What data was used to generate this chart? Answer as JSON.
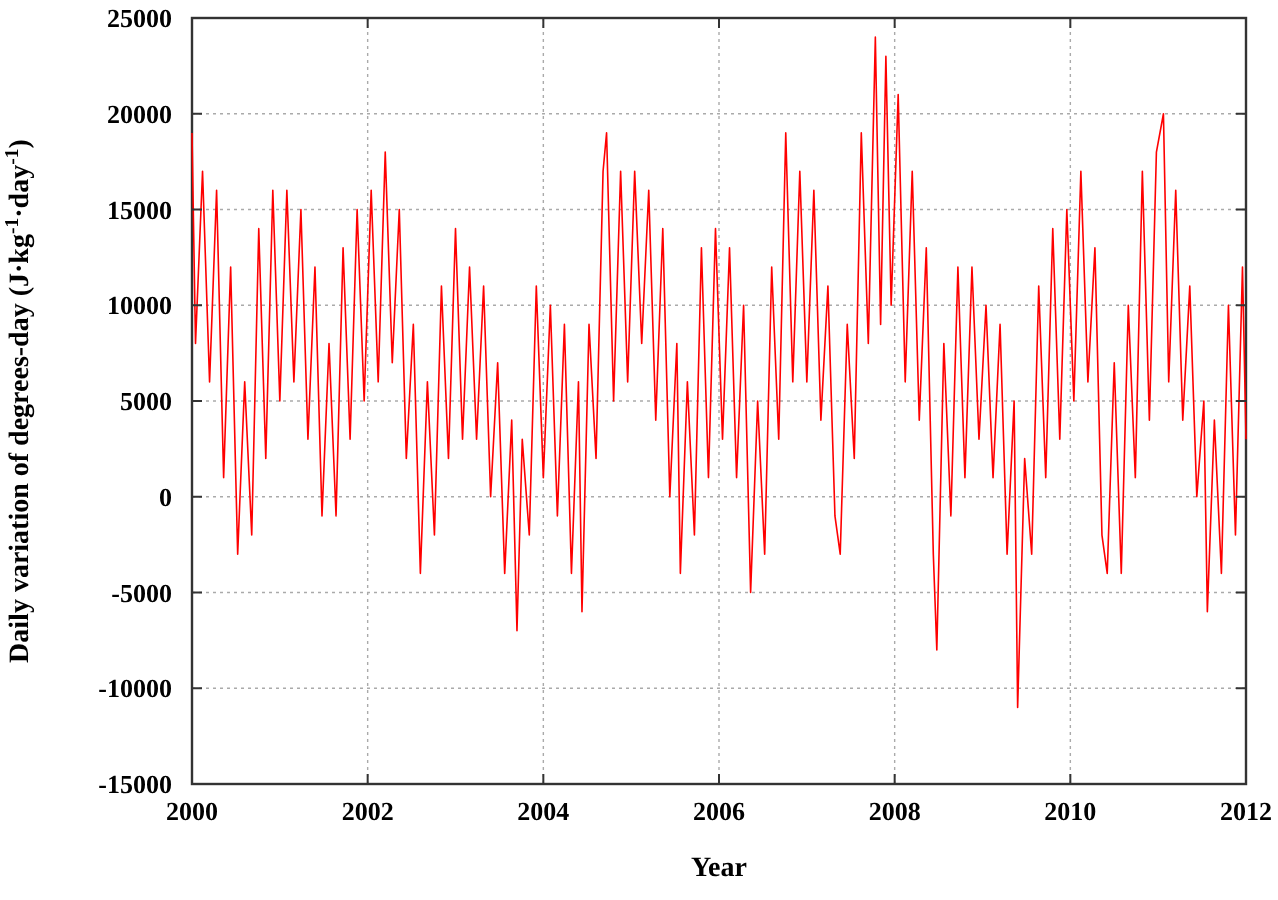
{
  "chart_data": {
    "type": "line",
    "xlabel": "Year",
    "ylabel": "Daily variation of degrees-day (J·kg$^{-1}$·day$^{-1}$)",
    "xlim": [
      2000,
      2012
    ],
    "xticks": [
      2000,
      2002,
      2004,
      2006,
      2008,
      2010,
      2012
    ],
    "ylim": [
      -15000,
      25000
    ],
    "yticks": [
      -15000,
      -10000,
      -5000,
      0,
      5000,
      10000,
      15000,
      20000,
      25000
    ],
    "grid": true,
    "marker": "none",
    "line_style": "solid",
    "series": [
      {
        "color": "#ff0000",
        "x": [
          2000.0,
          2000.04,
          2000.12,
          2000.2,
          2000.28,
          2000.36,
          2000.44,
          2000.52,
          2000.6,
          2000.68,
          2000.76,
          2000.84,
          2000.92,
          2001.0,
          2001.08,
          2001.16,
          2001.24,
          2001.32,
          2001.4,
          2001.48,
          2001.56,
          2001.64,
          2001.72,
          2001.8,
          2001.88,
          2001.96,
          2002.04,
          2002.12,
          2002.2,
          2002.28,
          2002.36,
          2002.44,
          2002.52,
          2002.6,
          2002.68,
          2002.76,
          2002.84,
          2002.92,
          2003.0,
          2003.08,
          2003.16,
          2003.24,
          2003.32,
          2003.4,
          2003.48,
          2003.56,
          2003.64,
          2003.7,
          2003.76,
          2003.84,
          2003.92,
          2004.0,
          2004.08,
          2004.16,
          2004.24,
          2004.32,
          2004.4,
          2004.44,
          2004.52,
          2004.6,
          2004.68,
          2004.72,
          2004.8,
          2004.88,
          2004.96,
          2005.04,
          2005.12,
          2005.2,
          2005.28,
          2005.36,
          2005.44,
          2005.52,
          2005.56,
          2005.64,
          2005.72,
          2005.8,
          2005.88,
          2005.96,
          2006.04,
          2006.12,
          2006.2,
          2006.28,
          2006.36,
          2006.44,
          2006.52,
          2006.6,
          2006.68,
          2006.76,
          2006.84,
          2006.92,
          2007.0,
          2007.08,
          2007.16,
          2007.24,
          2007.32,
          2007.38,
          2007.46,
          2007.54,
          2007.62,
          2007.7,
          2007.78,
          2007.84,
          2007.9,
          2007.96,
          2008.04,
          2008.12,
          2008.2,
          2008.28,
          2008.36,
          2008.44,
          2008.48,
          2008.56,
          2008.64,
          2008.72,
          2008.8,
          2008.88,
          2008.96,
          2009.04,
          2009.12,
          2009.2,
          2009.28,
          2009.36,
          2009.4,
          2009.48,
          2009.56,
          2009.64,
          2009.72,
          2009.8,
          2009.88,
          2009.96,
          2010.04,
          2010.12,
          2010.2,
          2010.28,
          2010.36,
          2010.42,
          2010.5,
          2010.58,
          2010.66,
          2010.74,
          2010.82,
          2010.9,
          2010.98,
          2011.06,
          2011.12,
          2011.2,
          2011.28,
          2011.36,
          2011.44,
          2011.52,
          2011.56,
          2011.64,
          2011.72,
          2011.8,
          2011.88,
          2011.96,
          2012.0
        ],
        "values": [
          19000,
          8000,
          17000,
          6000,
          16000,
          1000,
          12000,
          -3000,
          6000,
          -2000,
          14000,
          2000,
          16000,
          5000,
          16000,
          6000,
          15000,
          3000,
          12000,
          -1000,
          8000,
          -1000,
          13000,
          3000,
          15000,
          5000,
          16000,
          6000,
          18000,
          7000,
          15000,
          2000,
          9000,
          -4000,
          6000,
          -2000,
          11000,
          2000,
          14000,
          3000,
          12000,
          3000,
          11000,
          0,
          7000,
          -4000,
          4000,
          -7000,
          3000,
          -2000,
          11000,
          1000,
          10000,
          -1000,
          9000,
          -4000,
          6000,
          -6000,
          9000,
          2000,
          17000,
          19000,
          5000,
          17000,
          6000,
          17000,
          8000,
          16000,
          4000,
          14000,
          0,
          8000,
          -4000,
          6000,
          -2000,
          13000,
          1000,
          14000,
          3000,
          13000,
          1000,
          10000,
          -5000,
          5000,
          -3000,
          12000,
          3000,
          19000,
          6000,
          17000,
          6000,
          16000,
          4000,
          11000,
          -1000,
          -3000,
          9000,
          2000,
          19000,
          8000,
          24000,
          9000,
          23000,
          10000,
          21000,
          6000,
          17000,
          4000,
          13000,
          -3000,
          -8000,
          8000,
          -1000,
          12000,
          1000,
          12000,
          3000,
          10000,
          1000,
          9000,
          -3000,
          5000,
          -11000,
          2000,
          -3000,
          11000,
          1000,
          14000,
          3000,
          15000,
          5000,
          17000,
          6000,
          13000,
          -2000,
          -4000,
          7000,
          -4000,
          10000,
          1000,
          17000,
          4000,
          18000,
          20000,
          6000,
          16000,
          4000,
          11000,
          0,
          5000,
          -6000,
          4000,
          -4000,
          10000,
          -2000,
          12000,
          3000
        ]
      }
    ]
  }
}
